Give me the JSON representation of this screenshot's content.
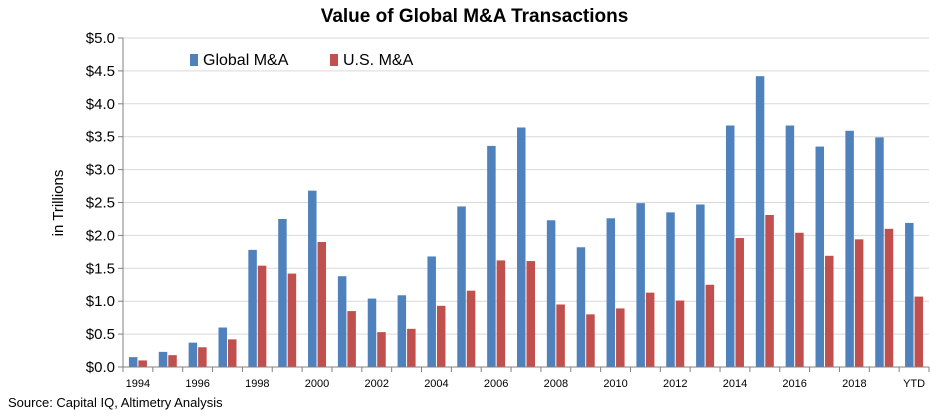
{
  "chart_data": {
    "type": "bar",
    "title": "Value of Global M&A Transactions",
    "ylabel": "in Trillions",
    "xlabel": "",
    "ylim": [
      0,
      5.0
    ],
    "yticks": [
      "$0.0",
      "$0.5",
      "$1.0",
      "$1.5",
      "$2.0",
      "$2.5",
      "$3.0",
      "$3.5",
      "$4.0",
      "$4.5",
      "$5.0"
    ],
    "ytick_values": [
      0,
      0.5,
      1.0,
      1.5,
      2.0,
      2.5,
      3.0,
      3.5,
      4.0,
      4.5,
      5.0
    ],
    "categories": [
      "1994",
      "1995",
      "1996",
      "1997",
      "1998",
      "1999",
      "2000",
      "2001",
      "2002",
      "2003",
      "2004",
      "2005",
      "2006",
      "2007",
      "2008",
      "2009",
      "2010",
      "2011",
      "2012",
      "2013",
      "2014",
      "2015",
      "2016",
      "2017",
      "2018",
      "2019",
      "YTD"
    ],
    "xtick_labels": [
      "1994",
      "",
      "1996",
      "",
      "1998",
      "",
      "2000",
      "",
      "2002",
      "",
      "2004",
      "",
      "2006",
      "",
      "2008",
      "",
      "2010",
      "",
      "2012",
      "",
      "2014",
      "",
      "2016",
      "",
      "2018",
      "",
      "YTD"
    ],
    "series": [
      {
        "name": "Global M&A",
        "color": "#4F81BD",
        "values": [
          0.15,
          0.23,
          0.37,
          0.6,
          1.78,
          2.25,
          2.68,
          1.38,
          1.04,
          1.09,
          1.68,
          2.44,
          3.36,
          3.64,
          2.23,
          1.82,
          2.26,
          2.49,
          2.35,
          2.47,
          3.67,
          4.42,
          3.67,
          3.35,
          3.59,
          3.49,
          2.19
        ]
      },
      {
        "name": "U.S. M&A",
        "color": "#C0504D",
        "values": [
          0.1,
          0.18,
          0.3,
          0.42,
          1.54,
          1.42,
          1.9,
          0.85,
          0.53,
          0.58,
          0.93,
          1.16,
          1.62,
          1.61,
          0.95,
          0.8,
          0.89,
          1.13,
          1.01,
          1.25,
          1.96,
          2.31,
          2.04,
          1.69,
          1.94,
          2.1,
          1.07
        ]
      }
    ],
    "legend_position": "top-left",
    "grid": true
  },
  "source": "Source: Capital IQ, Altimetry Analysis"
}
